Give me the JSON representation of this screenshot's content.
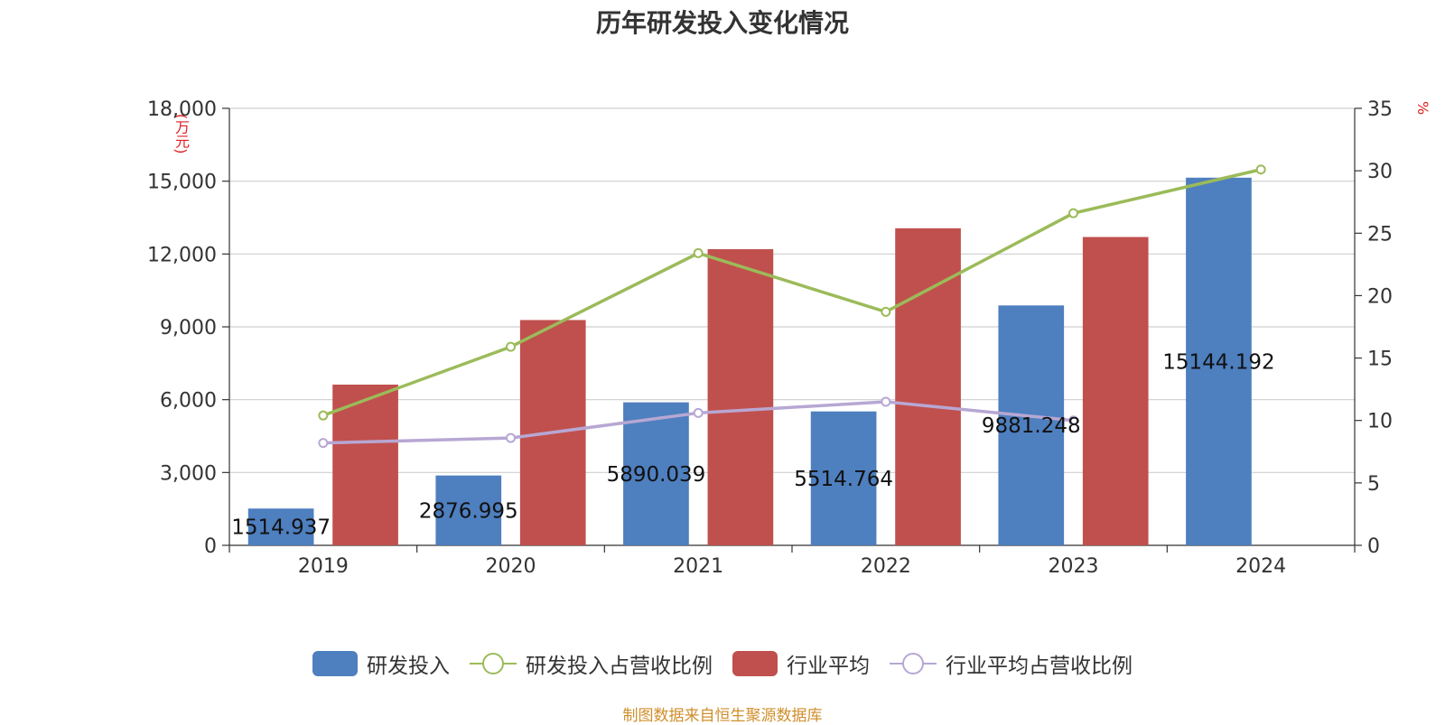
{
  "title": "历年研发投入变化情况",
  "unit_left": "(万元)",
  "unit_right": "%",
  "source": "制图数据来自恒生聚源数据库",
  "colors": {
    "rd": "#4e7fbf",
    "industry": "#c0504d",
    "rd_ratio": "#9bbb59",
    "industry_ratio": "#b7a7d3"
  },
  "chart_data": {
    "type": "bar",
    "categories": [
      "2019",
      "2020",
      "2021",
      "2022",
      "2023",
      "2024"
    ],
    "y_left": {
      "min": 0,
      "max": 18000,
      "ticks": [
        "0",
        "3,000",
        "6,000",
        "9,000",
        "12,000",
        "15,000",
        "18,000"
      ]
    },
    "y_right": {
      "min": 0,
      "max": 35,
      "ticks": [
        "0",
        "5",
        "10",
        "15",
        "20",
        "25",
        "30",
        "35"
      ]
    },
    "series": [
      {
        "name": "研发投入",
        "type": "bar",
        "axis": "left",
        "values": [
          1514.937,
          2876.995,
          5890.039,
          5514.764,
          9881.248,
          15144.192
        ],
        "labels": [
          "1514.937",
          "2876.995",
          "5890.039",
          "5514.764",
          "9881.248",
          "15144.192"
        ]
      },
      {
        "name": "研发投入占营收比例",
        "type": "line",
        "axis": "right",
        "values": [
          10.4,
          15.9,
          23.4,
          18.7,
          26.6,
          30.1
        ]
      },
      {
        "name": "行业平均",
        "type": "bar",
        "axis": "left",
        "values": [
          6620,
          9280,
          12200,
          13060,
          12700,
          null
        ]
      },
      {
        "name": "行业平均占营收比例",
        "type": "line",
        "axis": "right",
        "values": [
          8.2,
          8.6,
          10.6,
          11.5,
          10.0,
          null
        ]
      }
    ],
    "grid": true,
    "legend_position": "bottom"
  }
}
